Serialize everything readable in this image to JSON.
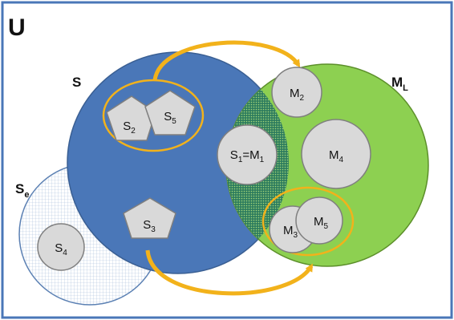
{
  "universe_label": "U",
  "sets": {
    "s": {
      "label": "S",
      "fill": "#4a77b8",
      "stroke": "#3a5f93"
    },
    "ml": {
      "label": "M",
      "sub": "L",
      "fill": "#8dd051",
      "stroke": "#5c8f2a"
    },
    "se": {
      "label": "S",
      "sub": "e",
      "fill": "#dbe6f2",
      "stroke": "#5b80b3"
    },
    "intersection_fill": "#2e7d5e"
  },
  "elements": {
    "s2": {
      "base": "S",
      "sub": "2"
    },
    "s5": {
      "base": "S",
      "sub": "5"
    },
    "s3": {
      "base": "S",
      "sub": "3"
    },
    "s4": {
      "base": "S",
      "sub": "4"
    },
    "s1m1": {
      "base": "S",
      "sub": "1",
      "mid": "=M",
      "sub2": "1"
    },
    "m2": {
      "base": "M",
      "sub": "2"
    },
    "m4": {
      "base": "M",
      "sub": "4"
    },
    "m3": {
      "base": "M",
      "sub": "3"
    },
    "m5": {
      "base": "M",
      "sub": "5"
    }
  },
  "colors": {
    "arrow": "#f2b21b",
    "group_ring": "#f2b21b",
    "element_fill": "#d9d9d9",
    "element_stroke": "#7f7f7f",
    "frame": "#4a77b8"
  }
}
